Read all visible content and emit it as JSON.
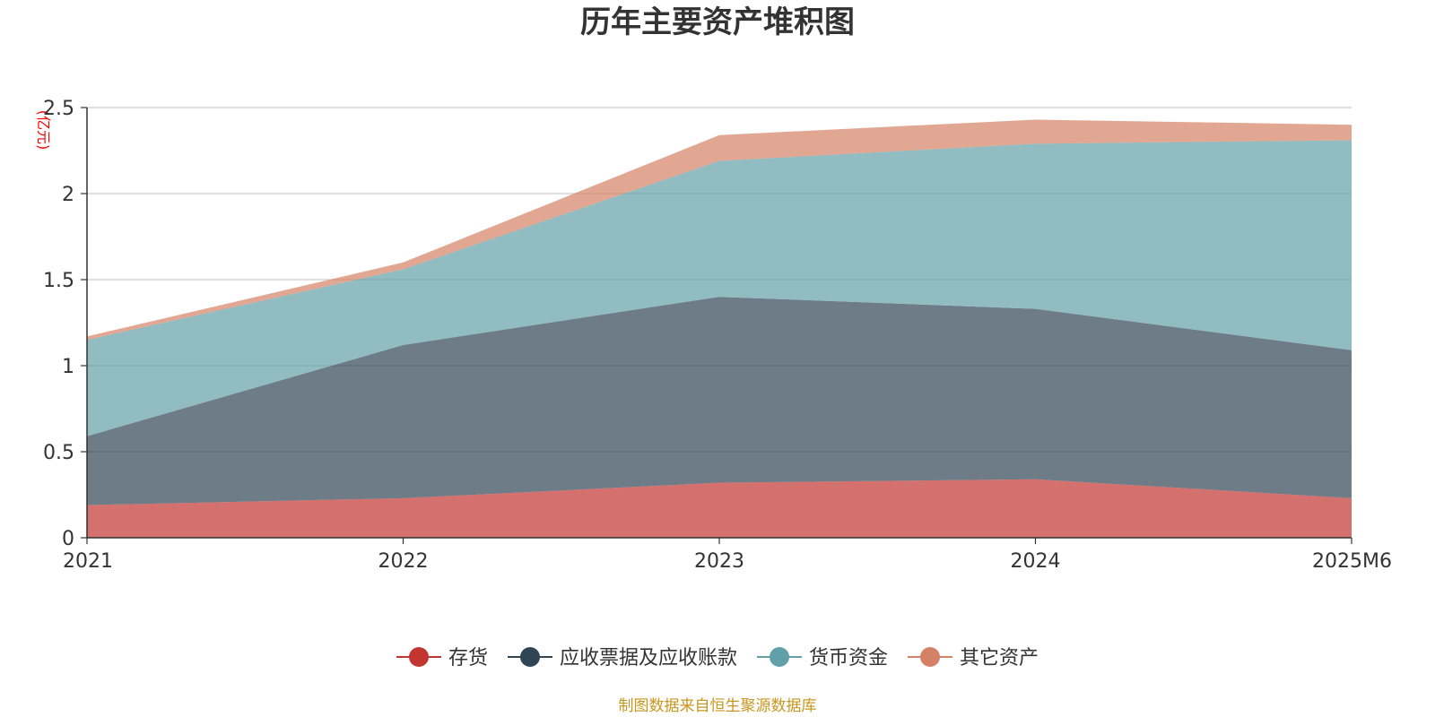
{
  "chart_data": {
    "type": "area",
    "stacked": true,
    "title": "历年主要资产堆积图",
    "unit_label": "(亿元)",
    "categories": [
      "2021",
      "2022",
      "2023",
      "2024",
      "2025M6"
    ],
    "ylim": [
      0,
      2.5
    ],
    "yticks": [
      "0",
      "0.5",
      "1",
      "1.5",
      "2",
      "2.5"
    ],
    "grid": true,
    "legend_position": "bottom",
    "series": [
      {
        "name": "存货",
        "color": "#c23531",
        "values": [
          0.19,
          0.23,
          0.32,
          0.34,
          0.23
        ]
      },
      {
        "name": "应收票据及应收账款",
        "color": "#2f4554",
        "values": [
          0.4,
          0.89,
          1.08,
          0.99,
          0.86
        ]
      },
      {
        "name": "货币资金",
        "color": "#61a0a8",
        "values": [
          0.56,
          0.44,
          0.79,
          0.96,
          1.22
        ]
      },
      {
        "name": "其它资产",
        "color": "#d48265",
        "values": [
          0.02,
          0.04,
          0.15,
          0.14,
          0.09
        ]
      }
    ]
  },
  "source_text": "制图数据来自恒生聚源数据库"
}
